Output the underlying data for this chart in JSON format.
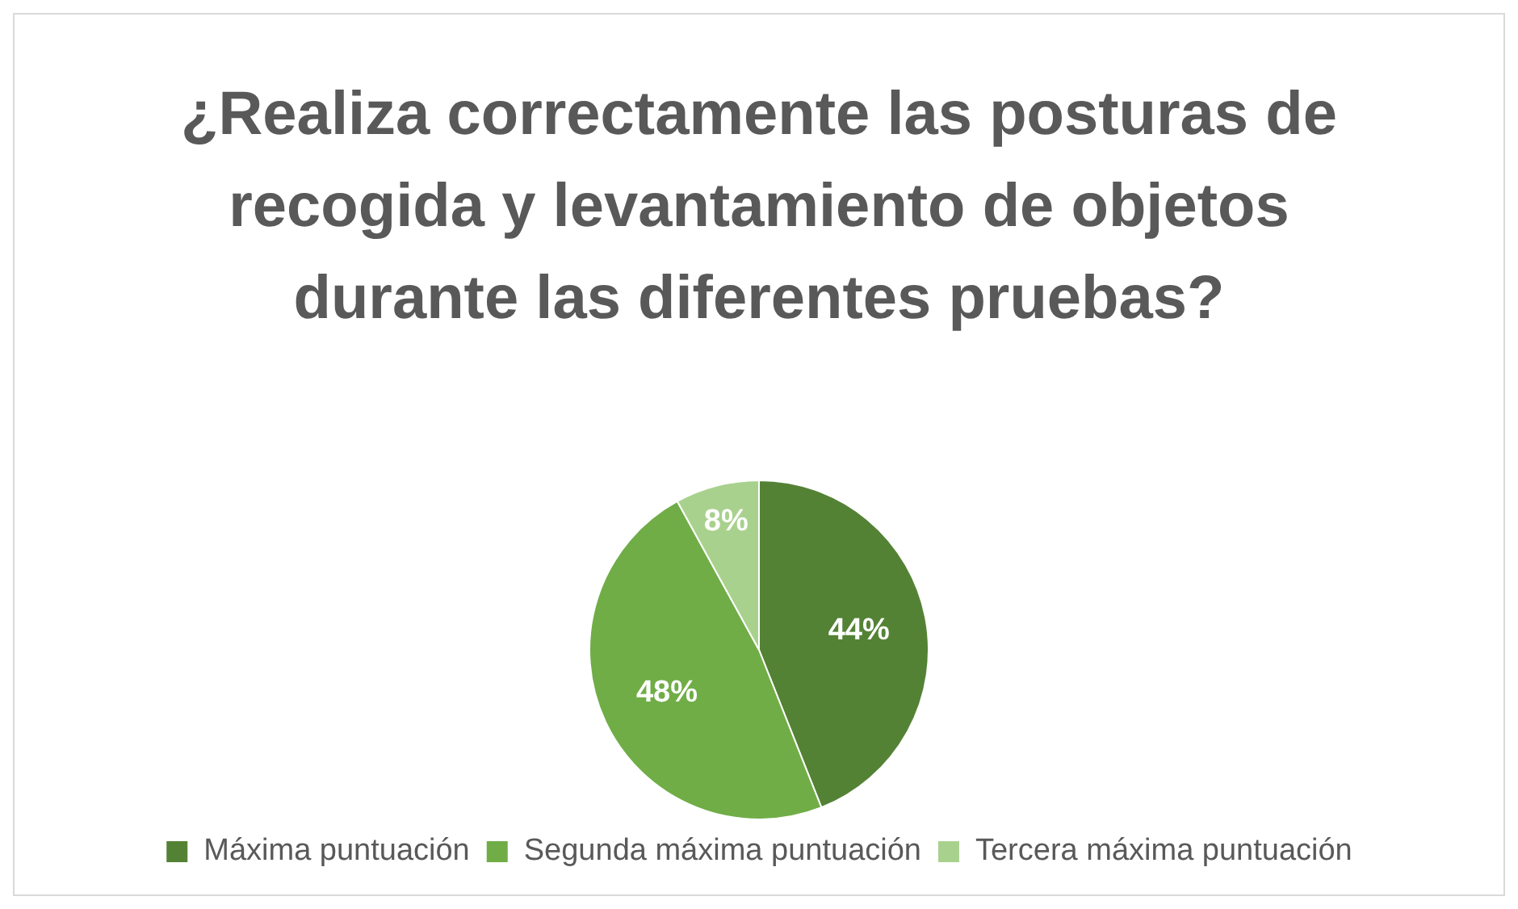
{
  "chart_data": {
    "type": "pie",
    "title": "¿Realiza correctamente las posturas de recogida y levantamiento de objetos durante las diferentes pruebas?",
    "categories": [
      "Máxima puntuación",
      "Segunda máxima puntuación",
      "Tercera máxima puntuación"
    ],
    "values": [
      44,
      48,
      8
    ],
    "colors": [
      "#548235",
      "#70ad47",
      "#a9d18e"
    ],
    "value_labels": [
      "44%",
      "48%",
      "8%"
    ],
    "legend": "bottom"
  }
}
